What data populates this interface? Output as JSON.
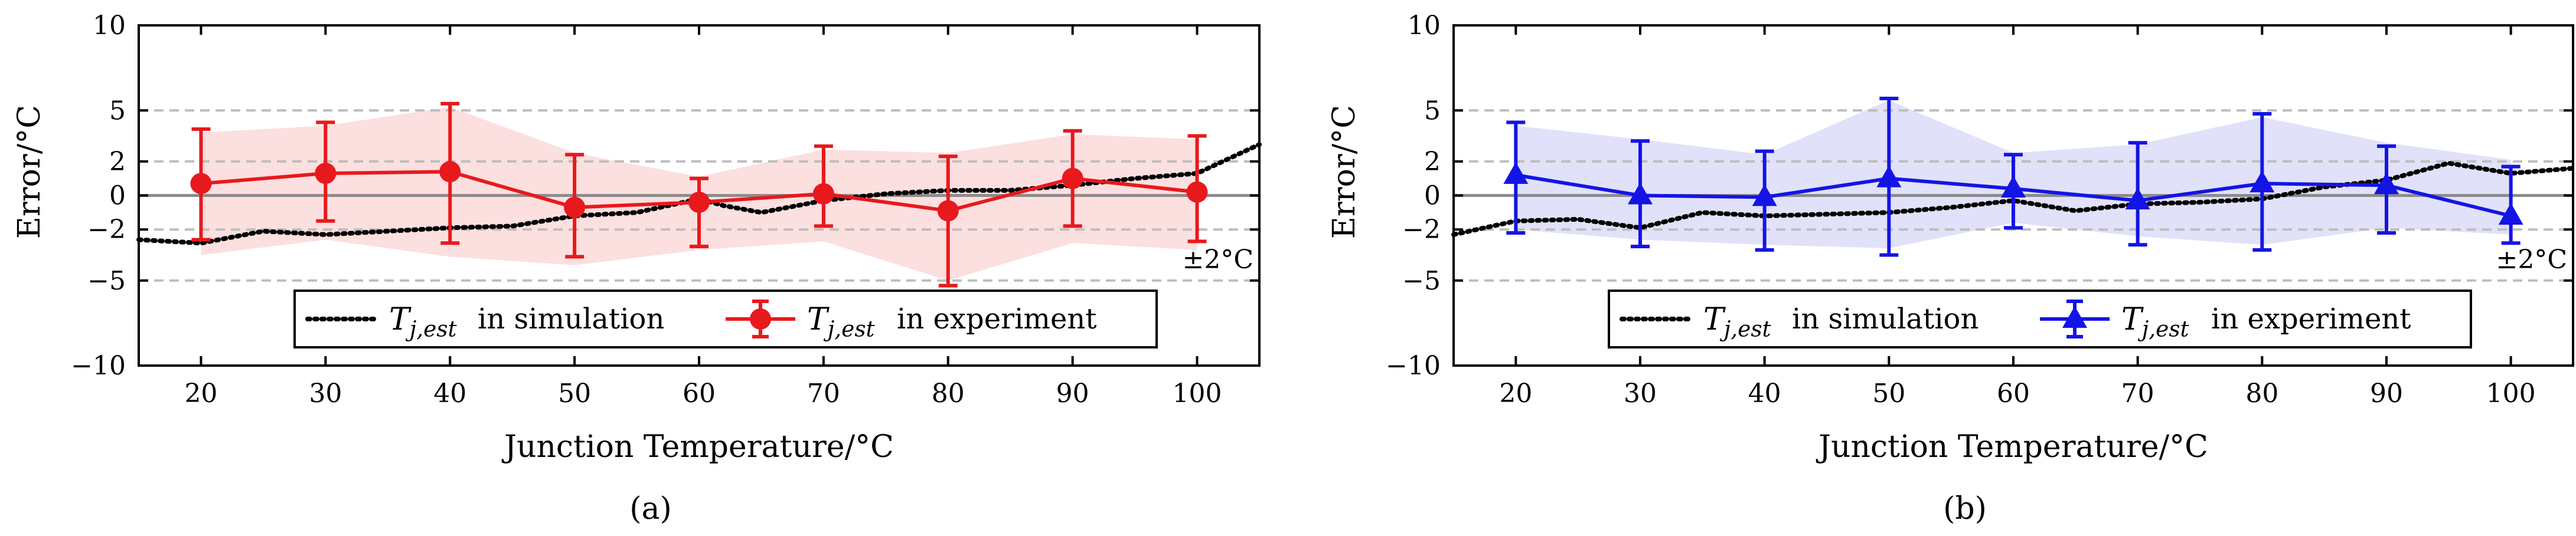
{
  "figure": {
    "panel_labels": [
      "(a)",
      "(b)"
    ]
  },
  "chart_data": [
    {
      "type": "line",
      "panel": "(a)",
      "xlabel": "Junction Temperature/°C",
      "ylabel": "Error/°C",
      "xlim": [
        15,
        105
      ],
      "ylim": [
        -10,
        10
      ],
      "xticks": [
        20,
        30,
        40,
        50,
        60,
        70,
        80,
        90,
        100
      ],
      "yticks": [
        -10,
        -5,
        -2,
        0,
        2,
        5,
        10
      ],
      "ytick_labels": [
        "−10",
        "−5",
        "−2",
        "0",
        "2",
        "5",
        "10"
      ],
      "dashed_reference_lines": [
        -5,
        -2,
        2,
        5
      ],
      "band_annotation": "±2°C",
      "accent_color": "#e8191c",
      "band_color": "#fbd9d9",
      "experiment": {
        "name": "T_{j,est} in experiment",
        "marker": "circle",
        "x": [
          20,
          30,
          40,
          50,
          60,
          70,
          80,
          90,
          100
        ],
        "y": [
          0.7,
          1.3,
          1.4,
          -0.7,
          -0.4,
          0.1,
          -0.9,
          1.0,
          0.2
        ],
        "err_low": [
          -2.6,
          -1.5,
          -2.8,
          -3.6,
          -3.0,
          -1.8,
          -5.3,
          -1.8,
          -2.7
        ],
        "err_high": [
          3.9,
          4.3,
          5.4,
          2.4,
          1.0,
          2.9,
          2.3,
          3.8,
          3.5
        ],
        "band_low": [
          -3.5,
          -2.6,
          -3.6,
          -4.1,
          -3.2,
          -2.7,
          -5.0,
          -2.8,
          -3.2
        ],
        "band_high": [
          3.7,
          4.1,
          5.2,
          2.5,
          1.1,
          2.7,
          2.5,
          3.6,
          3.3
        ]
      },
      "simulation": {
        "name": "T_{j,est} in simulation",
        "x": [
          15,
          20,
          25,
          30,
          35,
          40,
          45,
          50,
          55,
          60,
          62,
          65,
          70,
          75,
          80,
          85,
          90,
          95,
          100,
          105
        ],
        "y": [
          -2.6,
          -2.8,
          -2.1,
          -2.3,
          -2.1,
          -1.9,
          -1.8,
          -1.2,
          -1.0,
          -0.2,
          -0.6,
          -1.0,
          -0.3,
          0.1,
          0.3,
          0.3,
          0.6,
          1.0,
          1.3,
          3.0
        ]
      },
      "legend": {
        "placement": "lower-center",
        "entries": [
          {
            "label": "in simulation"
          },
          {
            "label": "in experiment"
          }
        ]
      }
    },
    {
      "type": "line",
      "panel": "(b)",
      "xlabel": "Junction Temperature/°C",
      "ylabel": "Error/°C",
      "xlim": [
        15,
        105
      ],
      "ylim": [
        -10,
        10
      ],
      "xticks": [
        20,
        30,
        40,
        50,
        60,
        70,
        80,
        90,
        100
      ],
      "yticks": [
        -10,
        -5,
        -2,
        0,
        2,
        5,
        10
      ],
      "ytick_labels": [
        "−10",
        "−5",
        "−2",
        "0",
        "2",
        "5",
        "10"
      ],
      "dashed_reference_lines": [
        -5,
        -2,
        2,
        5
      ],
      "band_annotation": "±2°C",
      "accent_color": "#1414e6",
      "band_color": "#dcdcf8",
      "experiment": {
        "name": "T_{j,est} in experiment",
        "marker": "triangle",
        "x": [
          20,
          30,
          40,
          50,
          60,
          70,
          80,
          90,
          100
        ],
        "y": [
          1.2,
          0.0,
          -0.1,
          1.0,
          0.4,
          -0.3,
          0.7,
          0.6,
          -1.2
        ],
        "err_low": [
          -2.2,
          -3.0,
          -3.2,
          -3.5,
          -1.9,
          -2.9,
          -3.2,
          -2.2,
          -2.8
        ],
        "err_high": [
          4.3,
          3.2,
          2.6,
          5.7,
          2.4,
          3.1,
          4.8,
          2.9,
          1.7
        ],
        "band_low": [
          -2.0,
          -2.6,
          -2.9,
          -3.1,
          -1.6,
          -2.4,
          -2.9,
          -1.9,
          -2.3
        ],
        "band_high": [
          4.1,
          3.3,
          2.4,
          5.6,
          2.5,
          3.0,
          4.6,
          3.1,
          2.1
        ]
      },
      "simulation": {
        "name": "T_{j,est} in simulation",
        "x": [
          15,
          20,
          25,
          30,
          35,
          40,
          45,
          50,
          55,
          60,
          65,
          70,
          75,
          80,
          85,
          90,
          95,
          100,
          105
        ],
        "y": [
          -2.3,
          -1.5,
          -1.4,
          -1.9,
          -1.0,
          -1.2,
          -1.1,
          -1.0,
          -0.7,
          -0.3,
          -0.9,
          -0.5,
          -0.4,
          -0.2,
          0.5,
          0.9,
          1.9,
          1.3,
          1.6
        ]
      },
      "legend": {
        "placement": "lower-center",
        "entries": [
          {
            "label": "in simulation"
          },
          {
            "label": "in experiment"
          }
        ]
      }
    }
  ]
}
